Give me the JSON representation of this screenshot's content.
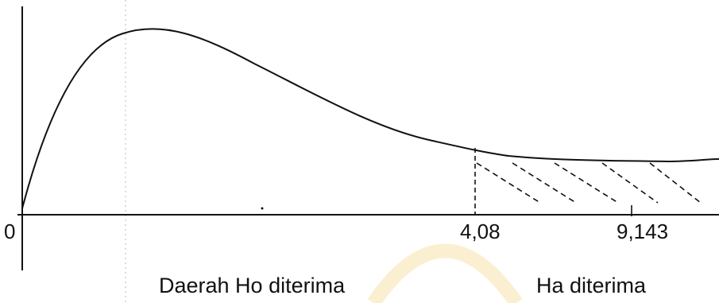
{
  "labels": {
    "origin": "0",
    "critical_value": "4,08",
    "test_statistic": "9,143",
    "accept_region": "Daerah Ho diterima",
    "reject_region": "Ha diterima"
  },
  "colors": {
    "ink": "#111111",
    "watermark": "#f3d27a"
  }
}
